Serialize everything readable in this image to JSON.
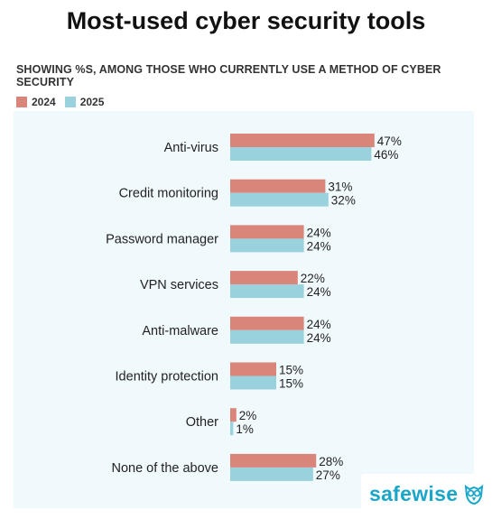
{
  "title": "Most-used cyber security tools",
  "subtitle": "SHOWING %S, AMONG THOSE WHO CURRENTLY USE A METHOD OF CYBER SECURITY",
  "legend": {
    "series_1": "2024",
    "series_2": "2025"
  },
  "brand": {
    "name": "safewise",
    "logo_icon": "owl-icon"
  },
  "colors": {
    "series_1": "#d9857a",
    "series_2": "#99d1dc",
    "plot_background": "#f0fafd"
  },
  "chart_data": {
    "type": "bar",
    "orientation": "horizontal",
    "categories": [
      "Anti-virus",
      "Credit monitoring",
      "Password manager",
      "VPN services",
      "Anti-malware",
      "Identity protection",
      "Other",
      "None of the above"
    ],
    "series": [
      {
        "name": "2024",
        "values": [
          47,
          31,
          24,
          22,
          24,
          15,
          2,
          28
        ],
        "labels": [
          "47%",
          "31%",
          "24%",
          "22%",
          "24%",
          "15%",
          "2%",
          "28%"
        ]
      },
      {
        "name": "2025",
        "values": [
          46,
          32,
          24,
          24,
          24,
          15,
          1,
          27
        ],
        "labels": [
          "46%",
          "32%",
          "24%",
          "24%",
          "24%",
          "15%",
          "1%",
          "27%"
        ]
      }
    ],
    "title": "Most-used cyber security tools",
    "subtitle": "SHOWING %S, AMONG THOSE WHO CURRENTLY USE A METHOD OF CYBER SECURITY",
    "xlabel": "",
    "ylabel": "",
    "grid": false,
    "legend_position": "top-left",
    "value_unit": "%"
  }
}
